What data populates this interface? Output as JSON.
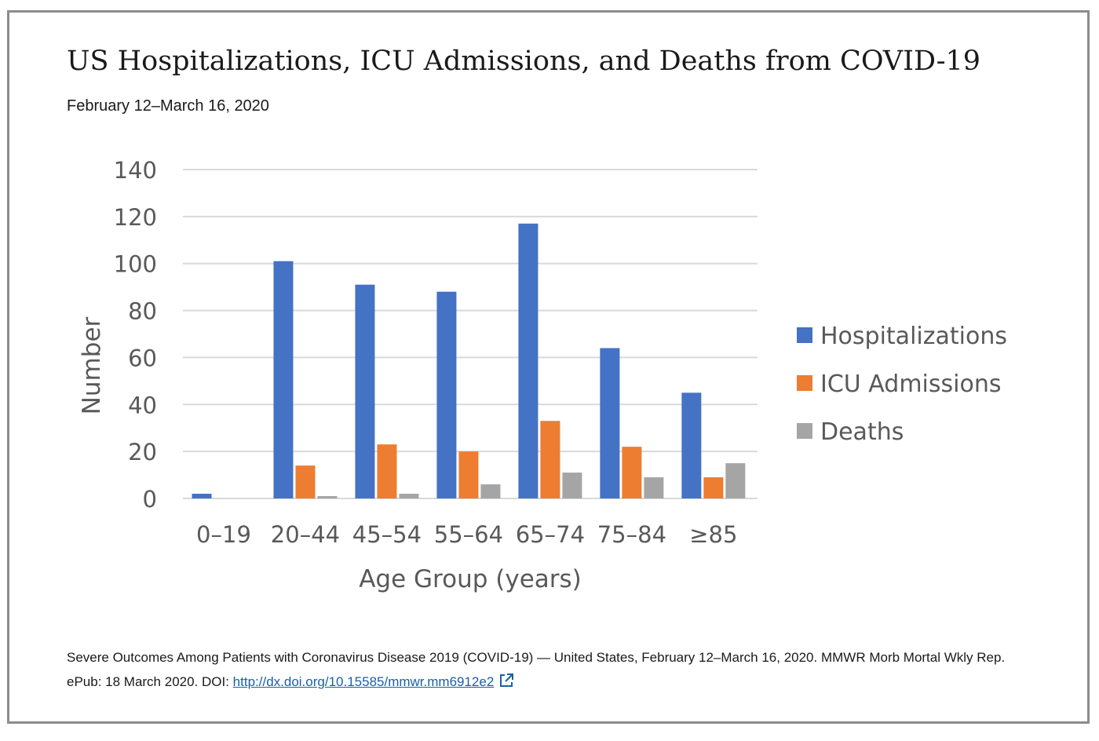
{
  "title": "US Hospitalizations, ICU Admissions, and Deaths from COVID-19",
  "subtitle": "February 12–March 16, 2020",
  "citation": {
    "text": "Severe Outcomes Among Patients with Coronavirus Disease 2019 (COVID-19) — United States, February 12–March 16, 2020. MMWR Morb Mortal Wkly Rep. ePub: 18 March 2020. DOI: ",
    "link_text": "http://dx.doi.org/10.15585/mmwr.mm6912e2",
    "external_icon": "external-link-icon"
  },
  "colors": {
    "hospitalizations": "#4472c4",
    "icu": "#ed7d31",
    "deaths": "#a5a5a5",
    "grid": "#d9d9d9",
    "axis_text": "#595959"
  },
  "chart_data": {
    "type": "bar",
    "categories": [
      "0–19",
      "20–44",
      "45–54",
      "55–64",
      "65–74",
      "75–84",
      "≥85"
    ],
    "series": [
      {
        "name": "Hospitalizations",
        "values": [
          2,
          101,
          91,
          88,
          117,
          64,
          45
        ]
      },
      {
        "name": "ICU Admissions",
        "values": [
          0,
          14,
          23,
          20,
          33,
          22,
          9
        ]
      },
      {
        "name": "Deaths",
        "values": [
          0,
          1,
          2,
          6,
          11,
          9,
          15
        ]
      }
    ],
    "xlabel": "Age Group (years)",
    "ylabel": "Number",
    "ylim": [
      0,
      140
    ],
    "yticks": [
      0,
      20,
      40,
      60,
      80,
      100,
      120,
      140
    ],
    "grid": true,
    "legend": "right"
  }
}
